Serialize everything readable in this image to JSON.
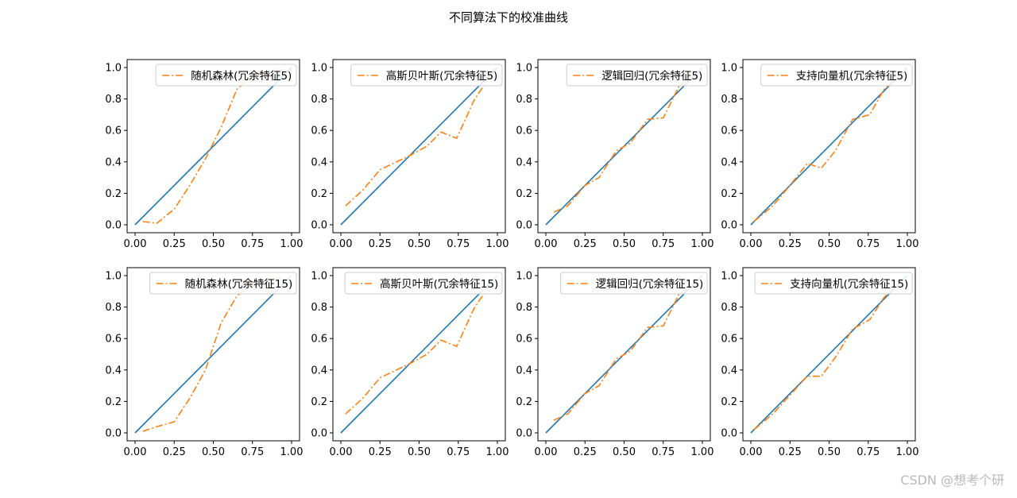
{
  "figure": {
    "title": "不同算法下的校准曲线",
    "watermark": "CSDN @想考个研"
  },
  "colors": {
    "reference": "#1f77b4",
    "curve": "#ff7f0e"
  },
  "chart_data": [
    {
      "type": "line",
      "legend": "top-right",
      "xlim": [
        0,
        1
      ],
      "ylim": [
        0,
        1
      ],
      "xticks": [
        "0.00",
        "0.25",
        "0.50",
        "0.75",
        "1.00"
      ],
      "yticks": [
        "0.0",
        "0.2",
        "0.4",
        "0.6",
        "0.8",
        "1.0"
      ],
      "series": [
        {
          "role": "reference",
          "style": "solid",
          "x": [
            0,
            1
          ],
          "y": [
            0,
            1
          ]
        },
        {
          "name": "随机森林(冗余特征5)",
          "style": "dashdot",
          "x": [
            0.05,
            0.14,
            0.25,
            0.35,
            0.45,
            0.55,
            0.65,
            0.75,
            0.85,
            0.95
          ],
          "y": [
            0.02,
            0.01,
            0.1,
            0.25,
            0.42,
            0.62,
            0.86,
            0.95,
            0.97,
            0.99
          ]
        }
      ]
    },
    {
      "type": "line",
      "legend": "top-right",
      "xlim": [
        0,
        1
      ],
      "ylim": [
        0,
        1
      ],
      "xticks": [
        "0.00",
        "0.25",
        "0.50",
        "0.75",
        "1.00"
      ],
      "yticks": [
        "0.0",
        "0.2",
        "0.4",
        "0.6",
        "0.8",
        "1.0"
      ],
      "series": [
        {
          "role": "reference",
          "style": "solid",
          "x": [
            0,
            1
          ],
          "y": [
            0,
            1
          ]
        },
        {
          "name": "高斯贝叶斯(冗余特征5)",
          "style": "dashdot",
          "x": [
            0.03,
            0.14,
            0.25,
            0.44,
            0.55,
            0.64,
            0.74,
            0.85,
            0.95
          ],
          "y": [
            0.12,
            0.22,
            0.35,
            0.44,
            0.5,
            0.59,
            0.55,
            0.79,
            0.94
          ]
        }
      ]
    },
    {
      "type": "line",
      "legend": "top-right",
      "xlim": [
        0,
        1
      ],
      "ylim": [
        0,
        1
      ],
      "xticks": [
        "0.00",
        "0.25",
        "0.50",
        "0.75",
        "1.00"
      ],
      "yticks": [
        "0.0",
        "0.2",
        "0.4",
        "0.6",
        "0.8",
        "1.0"
      ],
      "series": [
        {
          "role": "reference",
          "style": "solid",
          "x": [
            0,
            1
          ],
          "y": [
            0,
            1
          ]
        },
        {
          "name": "逻辑回归(冗余特征5)",
          "style": "dashdot",
          "x": [
            0.05,
            0.14,
            0.25,
            0.34,
            0.45,
            0.54,
            0.65,
            0.75,
            0.85,
            0.95
          ],
          "y": [
            0.08,
            0.12,
            0.25,
            0.3,
            0.47,
            0.52,
            0.67,
            0.68,
            0.88,
            0.95
          ]
        }
      ]
    },
    {
      "type": "line",
      "legend": "top-right",
      "xlim": [
        0,
        1
      ],
      "ylim": [
        0,
        1
      ],
      "xticks": [
        "0.00",
        "0.25",
        "0.50",
        "0.75",
        "1.00"
      ],
      "yticks": [
        "0.0",
        "0.2",
        "0.4",
        "0.6",
        "0.8",
        "1.0"
      ],
      "series": [
        {
          "role": "reference",
          "style": "solid",
          "x": [
            0,
            1
          ],
          "y": [
            0,
            1
          ]
        },
        {
          "name": "支持向量机(冗余特征5)",
          "style": "dashdot",
          "x": [
            0.02,
            0.14,
            0.25,
            0.36,
            0.45,
            0.54,
            0.65,
            0.76,
            0.85,
            0.95
          ],
          "y": [
            0.02,
            0.12,
            0.25,
            0.39,
            0.36,
            0.47,
            0.67,
            0.7,
            0.86,
            0.95
          ]
        }
      ]
    },
    {
      "type": "line",
      "legend": "top-right",
      "xlim": [
        0,
        1
      ],
      "ylim": [
        0,
        1
      ],
      "xticks": [
        "0.00",
        "0.25",
        "0.50",
        "0.75",
        "1.00"
      ],
      "yticks": [
        "0.0",
        "0.2",
        "0.4",
        "0.6",
        "0.8",
        "1.0"
      ],
      "series": [
        {
          "role": "reference",
          "style": "solid",
          "x": [
            0,
            1
          ],
          "y": [
            0,
            1
          ]
        },
        {
          "name": "随机森林(冗余特征15)",
          "style": "dashdot",
          "x": [
            0.05,
            0.14,
            0.25,
            0.35,
            0.45,
            0.55,
            0.65,
            0.75,
            0.85,
            0.95
          ],
          "y": [
            0.01,
            0.04,
            0.07,
            0.22,
            0.4,
            0.7,
            0.87,
            0.95,
            0.97,
            0.99
          ]
        }
      ]
    },
    {
      "type": "line",
      "legend": "top-right",
      "xlim": [
        0,
        1
      ],
      "ylim": [
        0,
        1
      ],
      "xticks": [
        "0.00",
        "0.25",
        "0.50",
        "0.75",
        "1.00"
      ],
      "yticks": [
        "0.0",
        "0.2",
        "0.4",
        "0.6",
        "0.8",
        "1.0"
      ],
      "series": [
        {
          "role": "reference",
          "style": "solid",
          "x": [
            0,
            1
          ],
          "y": [
            0,
            1
          ]
        },
        {
          "name": "高斯贝叶斯(冗余特征15)",
          "style": "dashdot",
          "x": [
            0.03,
            0.14,
            0.25,
            0.44,
            0.55,
            0.64,
            0.74,
            0.85,
            0.95
          ],
          "y": [
            0.12,
            0.22,
            0.35,
            0.44,
            0.5,
            0.59,
            0.55,
            0.79,
            0.94
          ]
        }
      ]
    },
    {
      "type": "line",
      "legend": "top-right",
      "xlim": [
        0,
        1
      ],
      "ylim": [
        0,
        1
      ],
      "xticks": [
        "0.00",
        "0.25",
        "0.50",
        "0.75",
        "1.00"
      ],
      "yticks": [
        "0.0",
        "0.2",
        "0.4",
        "0.6",
        "0.8",
        "1.0"
      ],
      "series": [
        {
          "role": "reference",
          "style": "solid",
          "x": [
            0,
            1
          ],
          "y": [
            0,
            1
          ]
        },
        {
          "name": "逻辑回归(冗余特征15)",
          "style": "dashdot",
          "x": [
            0.05,
            0.14,
            0.25,
            0.34,
            0.45,
            0.54,
            0.65,
            0.75,
            0.85,
            0.95
          ],
          "y": [
            0.08,
            0.12,
            0.25,
            0.3,
            0.47,
            0.52,
            0.67,
            0.68,
            0.88,
            0.95
          ]
        }
      ]
    },
    {
      "type": "line",
      "legend": "top-right",
      "xlim": [
        0,
        1
      ],
      "ylim": [
        0,
        1
      ],
      "xticks": [
        "0.00",
        "0.25",
        "0.50",
        "0.75",
        "1.00"
      ],
      "yticks": [
        "0.0",
        "0.2",
        "0.4",
        "0.6",
        "0.8",
        "1.0"
      ],
      "series": [
        {
          "role": "reference",
          "style": "solid",
          "x": [
            0,
            1
          ],
          "y": [
            0,
            1
          ]
        },
        {
          "name": "支持向量机(冗余特征15)",
          "style": "dashdot",
          "x": [
            0.02,
            0.14,
            0.25,
            0.36,
            0.45,
            0.54,
            0.65,
            0.76,
            0.85,
            0.95
          ],
          "y": [
            0.02,
            0.12,
            0.24,
            0.36,
            0.36,
            0.48,
            0.66,
            0.72,
            0.86,
            0.95
          ]
        }
      ]
    }
  ]
}
